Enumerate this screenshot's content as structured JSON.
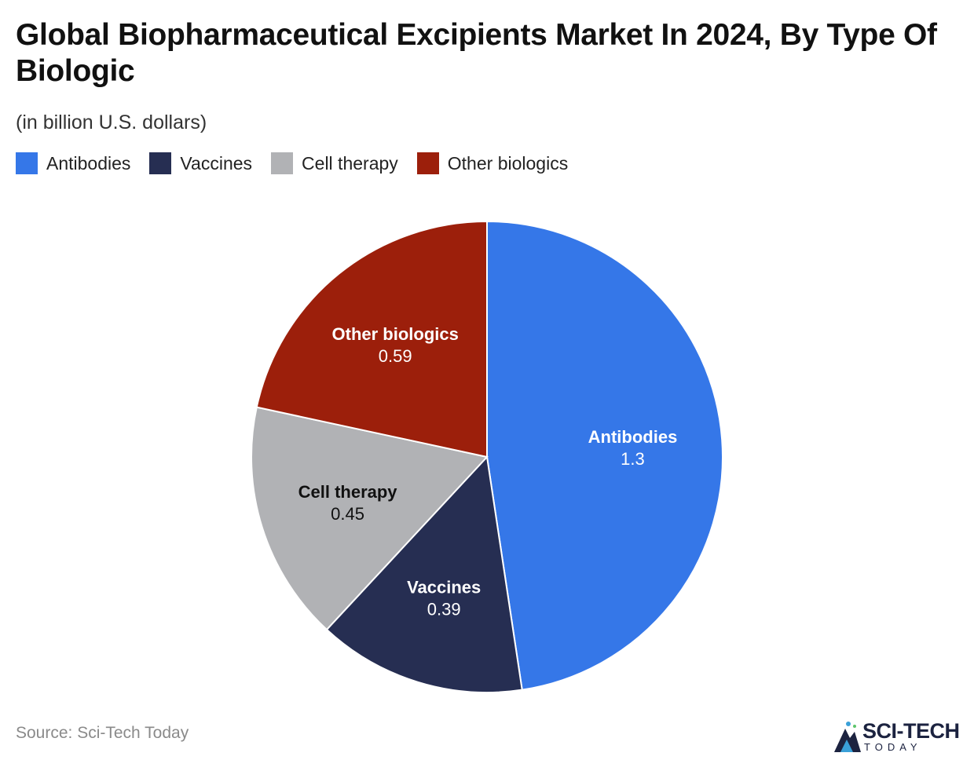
{
  "header": {
    "title": "Global Biopharmaceutical Excipients Market In 2024, By Type Of Biologic",
    "subtitle": "(in billion U.S. dollars)"
  },
  "chart_data": {
    "type": "pie",
    "title": "Global Biopharmaceutical Excipients Market In 2024, By Type Of Biologic",
    "subtitle": "(in billion U.S. dollars)",
    "legend_position": "top-left",
    "start_angle_deg": 0,
    "direction": "clockwise",
    "slices": [
      {
        "label": "Antibodies",
        "value": 1.3,
        "value_label": "1.3",
        "color": "#3577e8",
        "text_color": "#ffffff"
      },
      {
        "label": "Vaccines",
        "value": 0.39,
        "value_label": "0.39",
        "color": "#262e52",
        "text_color": "#ffffff"
      },
      {
        "label": "Cell therapy",
        "value": 0.45,
        "value_label": "0.45",
        "color": "#b1b2b5",
        "text_color": "#111111"
      },
      {
        "label": "Other biologics",
        "value": 0.59,
        "value_label": "0.59",
        "color": "#9c1f0b",
        "text_color": "#ffffff"
      }
    ]
  },
  "footer": {
    "source": "Source: Sci-Tech Today",
    "logo_text": "SCI-TECH",
    "logo_sub": "TODAY"
  }
}
